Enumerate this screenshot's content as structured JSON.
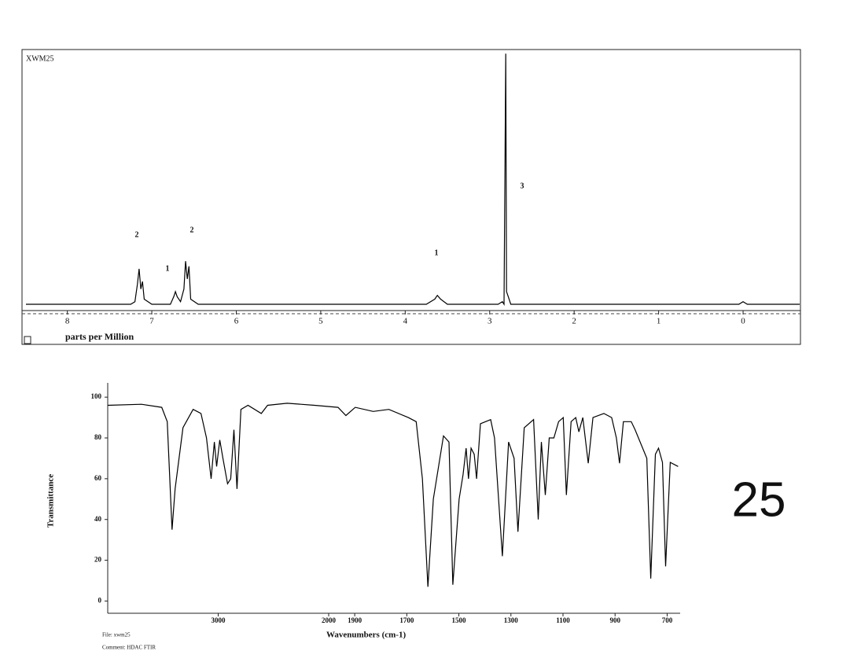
{
  "chart_data": [
    {
      "type": "line",
      "title": "XWM25",
      "xlabel": "parts per Million",
      "x": [
        8.49,
        7.25,
        7.2,
        7.17,
        7.15,
        7.13,
        7.11,
        7.09,
        7.0,
        6.78,
        6.74,
        6.72,
        6.7,
        6.66,
        6.62,
        6.6,
        6.58,
        6.56,
        6.54,
        6.45,
        3.75,
        3.65,
        3.62,
        3.58,
        3.5,
        2.9,
        2.85,
        2.83,
        2.81,
        2.8,
        2.78,
        2.75,
        0.05,
        0.0,
        -0.05,
        -0.67
      ],
      "values": [
        0,
        0,
        1,
        8,
        14,
        6,
        9,
        2,
        0,
        0,
        3,
        5,
        3,
        1,
        6,
        17,
        10,
        15,
        2,
        0,
        0,
        2,
        3.5,
        2,
        0,
        0,
        1,
        0,
        99,
        5,
        3,
        0,
        0,
        1,
        0,
        0
      ],
      "color": "#000000",
      "xlim": [
        8.49,
        -0.67
      ],
      "ylim": [
        -2.5,
        100
      ],
      "xticks": [
        8,
        7,
        6,
        5,
        4,
        3,
        2,
        1,
        0
      ],
      "annotations": [
        "2",
        "1",
        "2",
        "1",
        "3"
      ]
    },
    {
      "type": "line",
      "xlabel": "Wavenumbers (cm-1)",
      "ylabel": "Transmittance",
      "x": [
        4000,
        3695,
        3511,
        3461,
        3418,
        3390,
        3319,
        3227,
        3156,
        3106,
        3064,
        3035,
        3014,
        2986,
        2957,
        2915,
        2887,
        2858,
        2830,
        2794,
        2730,
        2610,
        2553,
        2376,
        2128,
        1964,
        1934,
        1898,
        1829,
        1769,
        1694,
        1664,
        1640,
        1619,
        1598,
        1559,
        1538,
        1523,
        1499,
        1484,
        1472,
        1463,
        1453,
        1441,
        1432,
        1417,
        1378,
        1363,
        1333,
        1309,
        1288,
        1273,
        1249,
        1213,
        1195,
        1183,
        1168,
        1153,
        1135,
        1117,
        1099,
        1087,
        1069,
        1051,
        1039,
        1024,
        1003,
        985,
        943,
        913,
        895,
        883,
        868,
        838,
        823,
        778,
        763,
        745,
        733,
        718,
        706,
        688,
        658
      ],
      "values": [
        96,
        96.5,
        95,
        88,
        35,
        55,
        85,
        94,
        92,
        80,
        60,
        78,
        66,
        79,
        70,
        57.5,
        60,
        84,
        55,
        94,
        96,
        92,
        96,
        97,
        96,
        95,
        91,
        95,
        93,
        94,
        90,
        88,
        60,
        7,
        50,
        81,
        78,
        8,
        50,
        62,
        75,
        60,
        75,
        72,
        60,
        87,
        89,
        80,
        22,
        78,
        70,
        34,
        85,
        89,
        40,
        78,
        52,
        80,
        80,
        88,
        90,
        52,
        88,
        90,
        83,
        90,
        67.6,
        90,
        92,
        90,
        80,
        67.6,
        88,
        88,
        84,
        70,
        11,
        72,
        75,
        68,
        17,
        68,
        66
      ],
      "color": "#000000",
      "xlim": [
        4000,
        650
      ],
      "x_scale_break": 2000,
      "ylim": [
        -6,
        107
      ],
      "xticks": [
        3000,
        2000,
        1900,
        1700,
        1500,
        1300,
        1100,
        900,
        700
      ],
      "yticks": [
        0,
        20,
        40,
        60,
        80,
        100
      ]
    }
  ],
  "footer": {
    "file": "File: xwm25",
    "comment": "Comment: HDAC FTIR",
    "compound_number": "25"
  }
}
